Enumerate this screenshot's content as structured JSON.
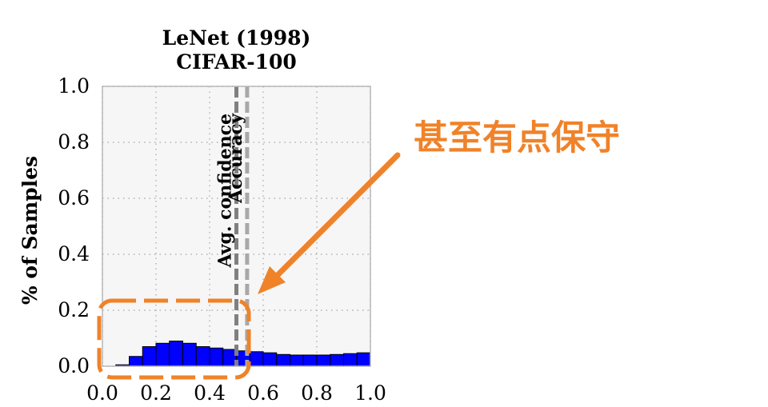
{
  "chart_data": {
    "type": "bar",
    "title": [
      "LeNet (1998)",
      "CIFAR-100"
    ],
    "xlabel": "",
    "ylabel": "% of Samples",
    "xlim": [
      0.0,
      1.0
    ],
    "ylim": [
      0.0,
      1.0
    ],
    "xticks": [
      "0.0",
      "0.2",
      "0.4",
      "0.6",
      "0.8",
      "1.0"
    ],
    "yticks": [
      "0.0",
      "0.2",
      "0.4",
      "0.6",
      "0.8",
      "1.0"
    ],
    "grid": true,
    "bin_width": 0.05,
    "bins": [
      0.0,
      0.05,
      0.1,
      0.15,
      0.2,
      0.25,
      0.3,
      0.35,
      0.4,
      0.45,
      0.5,
      0.55,
      0.6,
      0.65,
      0.7,
      0.75,
      0.8,
      0.85,
      0.9,
      0.95
    ],
    "values": [
      0.0,
      0.005,
      0.035,
      0.07,
      0.082,
      0.09,
      0.082,
      0.07,
      0.065,
      0.06,
      0.055,
      0.052,
      0.048,
      0.042,
      0.04,
      0.04,
      0.04,
      0.042,
      0.045,
      0.048
    ],
    "bar_color": "#0000ff",
    "lines": [
      {
        "label": "Avg. confidence",
        "x": 0.5,
        "color": "#808080"
      },
      {
        "label": "Accuracy",
        "x": 0.54,
        "color": "#a8a8a8"
      }
    ]
  },
  "annotation": {
    "text": "甚至有点保守",
    "color": "#f08228"
  }
}
